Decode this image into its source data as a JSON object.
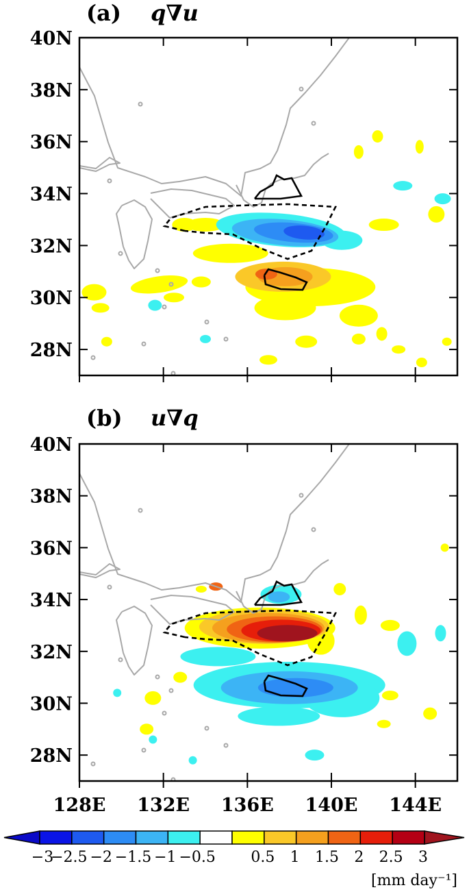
{
  "chart_data": [
    {
      "type": "heatmap",
      "panel": "(a)",
      "title_prefix": "(a)",
      "title_term": "q∇u",
      "lon_range": [
        128,
        146
      ],
      "lat_range": [
        27,
        40
      ],
      "yticks": [
        "40N",
        "38N",
        "36N",
        "34N",
        "32N",
        "30N",
        "28N"
      ],
      "ytick_values": [
        40,
        38,
        36,
        34,
        32,
        30,
        28
      ],
      "xtick_values": [
        128,
        132,
        136,
        140,
        144
      ],
      "features": [
        {
          "kind": "negative",
          "lon": 138.3,
          "lat": 32.6,
          "value": -2.0
        },
        {
          "kind": "positive",
          "lon": 137.6,
          "lat": 30.6,
          "value": 1.5
        },
        {
          "kind": "positive",
          "lon": 135.0,
          "lat": 31.5,
          "value": 0.7
        },
        {
          "kind": "positive",
          "lon": 140.5,
          "lat": 29.5,
          "value": 0.5
        }
      ],
      "contours": [
        {
          "style": "dashed",
          "description": "region around 33N"
        },
        {
          "style": "solid",
          "description": "small region near 34.3N 137.3E"
        },
        {
          "style": "solid",
          "description": "region near 30.8N 137.5E"
        }
      ]
    },
    {
      "type": "heatmap",
      "panel": "(b)",
      "title_prefix": "(b)",
      "title_term": "u∇q",
      "lon_range": [
        128,
        146
      ],
      "lat_range": [
        27,
        40
      ],
      "yticks": [
        "40N",
        "38N",
        "36N",
        "34N",
        "32N",
        "30N",
        "28N"
      ],
      "ytick_values": [
        40,
        38,
        36,
        34,
        32,
        30,
        28
      ],
      "xticks": [
        "128E",
        "132E",
        "136E",
        "140E",
        "144E"
      ],
      "xtick_values": [
        128,
        132,
        136,
        140,
        144
      ],
      "features": [
        {
          "kind": "positive",
          "lon": 137.5,
          "lat": 32.9,
          "value": 3.0
        },
        {
          "kind": "negative",
          "lon": 138.0,
          "lat": 30.7,
          "value": -1.5
        },
        {
          "kind": "negative",
          "lon": 137.4,
          "lat": 34.3,
          "value": -1.0
        }
      ],
      "contours": [
        {
          "style": "dashed",
          "description": "region around 33N"
        },
        {
          "style": "solid",
          "description": "small region near 34.3N 137.3E"
        },
        {
          "style": "solid",
          "description": "region near 30.8N 137.5E"
        }
      ]
    }
  ],
  "colorbar": {
    "labels": [
      "−3",
      "−2.5",
      "−2",
      "−1.5",
      "−1",
      "−0.5",
      "0.5",
      "1",
      "1.5",
      "2",
      "2.5",
      "3"
    ],
    "colors": [
      "#0a14e6",
      "#1e5af0",
      "#2d8cf5",
      "#3cb4f5",
      "#3cf0f0",
      "#ffffff",
      "#ffff00",
      "#fac828",
      "#f5a01e",
      "#f06414",
      "#e61e0a",
      "#b40014"
    ],
    "left_end_color": "#0a0ac8",
    "right_end_color": "#a0141e",
    "unit": "[mm day⁻¹]"
  },
  "colors": {
    "coast": "#a8a8a8",
    "frame": "#000000"
  }
}
